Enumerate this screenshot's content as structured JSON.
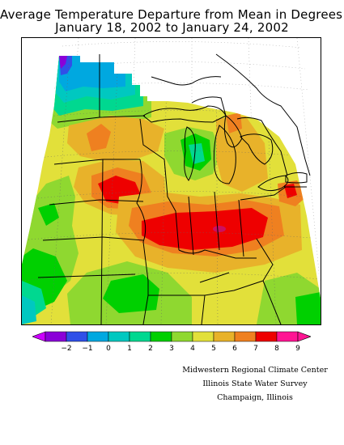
{
  "title": {
    "line1": "Average Temperature Departure from Mean in Degrees F",
    "line2": "January 18, 2002 to January 24, 2002"
  },
  "legend": {
    "labels": [
      "−2",
      "−1",
      "0",
      "1",
      "2",
      "3",
      "4",
      "5",
      "6",
      "7",
      "8",
      "9"
    ],
    "colors": [
      "#8a00d8",
      "#3050e8",
      "#00a8e0",
      "#00c8c0",
      "#00d890",
      "#00d000",
      "#8fd830",
      "#e2e03a",
      "#e8b22a",
      "#ef8020",
      "#ee0000",
      "#ff1493"
    ],
    "low_arrow_color": "#cc00ff",
    "high_arrow_color": "#ff1493"
  },
  "credits": {
    "line1": "Midwestern Regional Climate Center",
    "line2": "Illinois State Water Survey",
    "line3": "Champaign, Illinois"
  }
}
